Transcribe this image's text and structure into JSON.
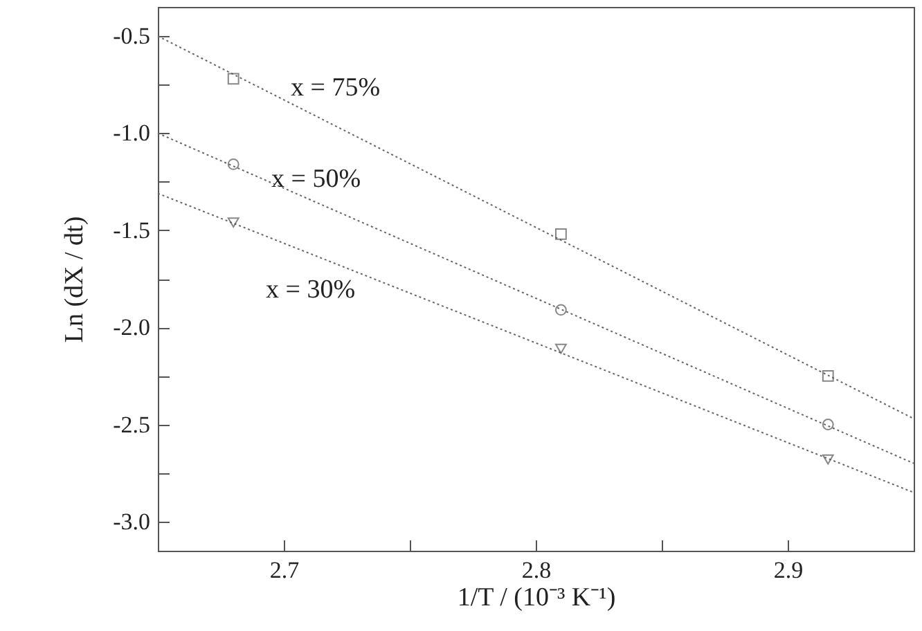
{
  "chart_data": {
    "type": "scatter",
    "xlabel": "1/T / (10⁻³ K⁻¹)",
    "ylabel": "Ln (dX / dt)",
    "xlim": [
      2.65,
      2.95
    ],
    "ylim": [
      -3.15,
      -0.35
    ],
    "xticks": [
      {
        "value": 2.65,
        "label": null
      },
      2.7,
      {
        "value": 2.75,
        "label": null
      },
      2.8,
      {
        "value": 2.85,
        "label": null
      },
      2.9,
      {
        "value": 2.95,
        "label": null
      }
    ],
    "yticks": [
      {
        "value": -3,
        "label": "-3.0"
      },
      {
        "value": -2.75,
        "label": null
      },
      {
        "value": -2.5,
        "label": "-2.5"
      },
      {
        "value": -2.25,
        "label": null
      },
      {
        "value": -2,
        "label": "-2.0"
      },
      {
        "value": -1.75,
        "label": null
      },
      {
        "value": -1.5,
        "label": "-1.5"
      },
      {
        "value": -1.25,
        "label": null
      },
      {
        "value": -1,
        "label": "-1.0"
      },
      {
        "value": -0.75,
        "label": null
      },
      {
        "value": -0.5,
        "label": "-0.5"
      }
    ],
    "grid": false,
    "series": [
      {
        "type": "line",
        "color": "#666666",
        "line_style": "dotted",
        "marker": "none",
        "x": [
          2.65,
          2.95
        ],
        "values": [
          -0.5,
          -2.47
        ]
      },
      {
        "type": "line",
        "color": "#666666",
        "line_style": "dotted",
        "marker": "none",
        "x": [
          2.65,
          2.95
        ],
        "values": [
          -1.0,
          -2.7
        ]
      },
      {
        "type": "line",
        "color": "#666666",
        "line_style": "dotted",
        "marker": "none",
        "x": [
          2.65,
          2.95
        ],
        "values": [
          -1.31,
          -2.85
        ]
      },
      {
        "color": "#555555",
        "marker": "square",
        "x": [
          2.68,
          2.81,
          2.916
        ],
        "values": [
          -0.72,
          -1.52,
          -2.25
        ]
      },
      {
        "color": "#555555",
        "marker": "circle",
        "x": [
          2.68,
          2.81,
          2.916
        ],
        "values": [
          -1.16,
          -1.91,
          -2.5
        ]
      },
      {
        "color": "#555555",
        "marker": "triangle",
        "x": [
          2.68,
          2.81,
          2.916
        ],
        "values": [
          -1.46,
          -2.11,
          -2.68
        ]
      }
    ],
    "annotations": [
      "x = 75%",
      "x = 50%",
      "x = 30%"
    ]
  }
}
